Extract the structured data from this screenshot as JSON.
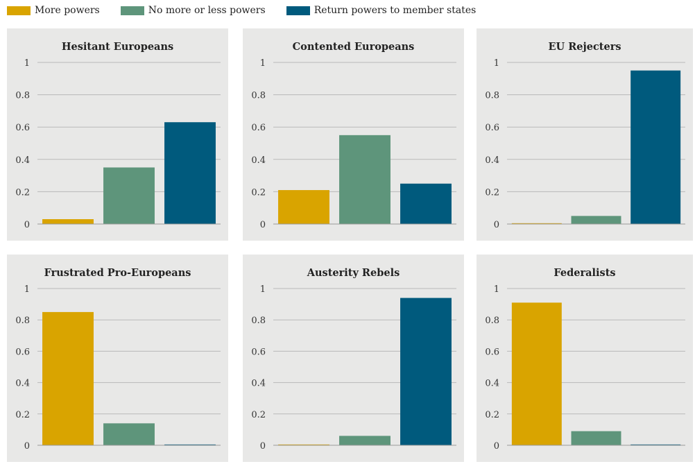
{
  "legend": [
    {
      "label": "More powers",
      "color": "#d9a400"
    },
    {
      "label": "No more or less powers",
      "color": "#5e957b"
    },
    {
      "label": "Return powers to member states",
      "color": "#005a7d"
    }
  ],
  "chart_data": [
    {
      "type": "bar",
      "title": "Hesitant Europeans",
      "categories": [
        "More powers",
        "No more or less powers",
        "Return powers to member states"
      ],
      "values": [
        0.03,
        0.35,
        0.63
      ],
      "ylim": [
        0,
        1
      ],
      "yticks": [
        "0",
        "0.2",
        "0.4",
        "0.6",
        "0.8",
        "1"
      ],
      "grid": true
    },
    {
      "type": "bar",
      "title": "Contented Europeans",
      "categories": [
        "More powers",
        "No more or less powers",
        "Return powers to member states"
      ],
      "values": [
        0.21,
        0.55,
        0.25
      ],
      "ylim": [
        0,
        1
      ],
      "yticks": [
        "0",
        "0.2",
        "0.4",
        "0.6",
        "0.8",
        "1"
      ],
      "grid": true
    },
    {
      "type": "bar",
      "title": "EU Rejecters",
      "categories": [
        "More powers",
        "No more or less powers",
        "Return powers to member states"
      ],
      "values": [
        0.005,
        0.05,
        0.95
      ],
      "ylim": [
        0,
        1
      ],
      "yticks": [
        "0",
        "0.2",
        "0.4",
        "0.6",
        "0.8",
        "1"
      ],
      "grid": true
    },
    {
      "type": "bar",
      "title": "Frustrated Pro-Europeans",
      "categories": [
        "More powers",
        "No more or less powers",
        "Return powers to member states"
      ],
      "values": [
        0.85,
        0.14,
        0.005
      ],
      "ylim": [
        0,
        1
      ],
      "yticks": [
        "0",
        "0.2",
        "0.4",
        "0.6",
        "0.8",
        "1"
      ],
      "grid": true
    },
    {
      "type": "bar",
      "title": "Austerity Rebels",
      "categories": [
        "More powers",
        "No more or less powers",
        "Return powers to member states"
      ],
      "values": [
        0.005,
        0.06,
        0.94
      ],
      "ylim": [
        0,
        1
      ],
      "yticks": [
        "0",
        "0.2",
        "0.4",
        "0.6",
        "0.8",
        "1"
      ],
      "grid": true
    },
    {
      "type": "bar",
      "title": "Federalists",
      "categories": [
        "More powers",
        "No more or less powers",
        "Return powers to member states"
      ],
      "values": [
        0.91,
        0.09,
        0.005
      ],
      "ylim": [
        0,
        1
      ],
      "yticks": [
        "0",
        "0.2",
        "0.4",
        "0.6",
        "0.8",
        "1"
      ],
      "grid": true
    }
  ]
}
